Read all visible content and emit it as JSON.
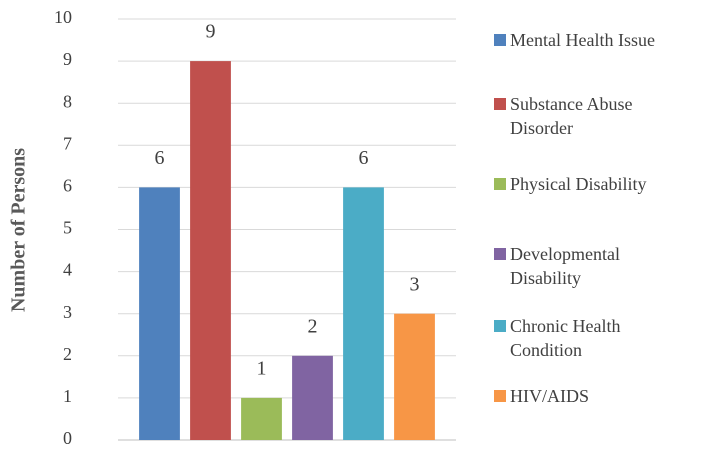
{
  "chart_data": {
    "type": "bar",
    "y_label": "Number of Persons",
    "categories": [
      null
    ],
    "series": [
      {
        "name": "Mental Health Issue",
        "color": "#4f81bd",
        "values": [
          6
        ]
      },
      {
        "name": "Substance Abuse Disorder",
        "color": "#c0504d",
        "values": [
          9
        ]
      },
      {
        "name": "Physical Disability",
        "color": "#9bbb59",
        "values": [
          1
        ]
      },
      {
        "name": "Developmental Disability",
        "color": "#8064a2",
        "values": [
          2
        ]
      },
      {
        "name": "Chronic Health Condition",
        "color": "#4bacc6",
        "values": [
          6
        ]
      },
      {
        "name": "HIV/AIDS",
        "color": "#f79646",
        "values": [
          3
        ]
      }
    ],
    "ylim": [
      0,
      10
    ],
    "yticks": [
      0,
      1,
      2,
      3,
      4,
      5,
      6,
      7,
      8,
      9,
      10
    ],
    "grid": true,
    "legend": "right"
  }
}
